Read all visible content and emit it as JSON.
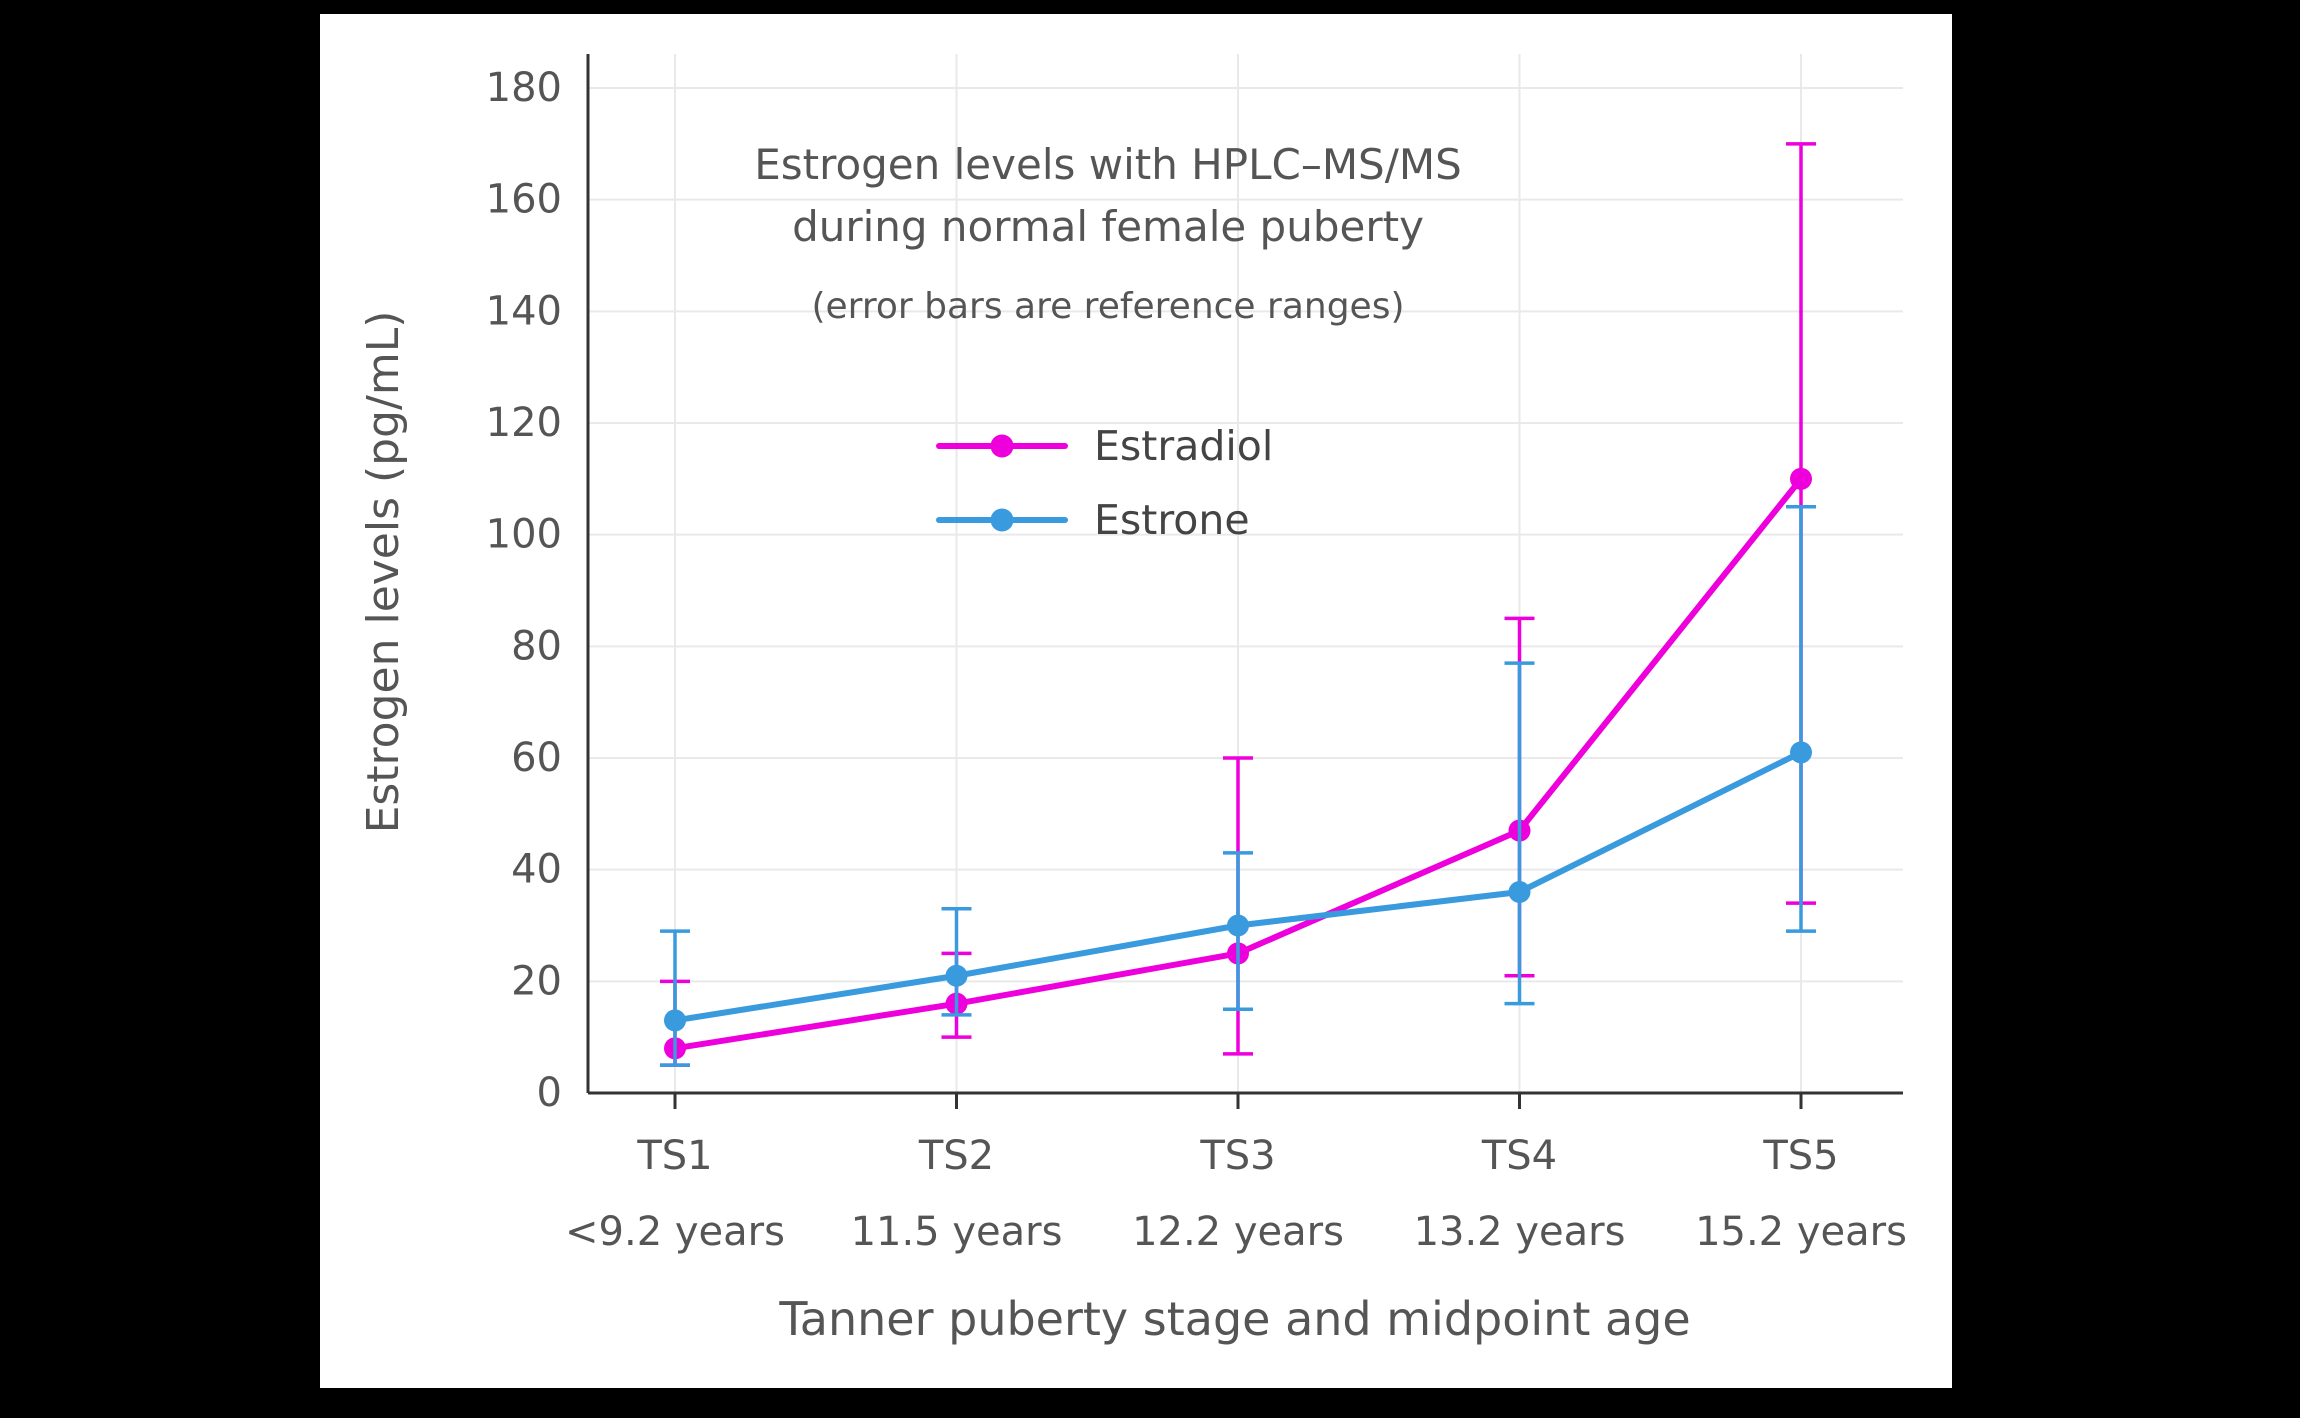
{
  "chart_data": {
    "type": "line",
    "title": "Estrogen levels with HPLC–MS/MS during normal female puberty",
    "title_lines": [
      "Estrogen levels with HPLC–MS/MS",
      "during normal female puberty"
    ],
    "subtitle": "(error bars are reference ranges)",
    "xlabel": "Tanner puberty stage and midpoint age",
    "ylabel": "Estrogen levels (pg/mL)",
    "categories": [
      "TS1",
      "TS2",
      "TS3",
      "TS4",
      "TS5"
    ],
    "category_sublabels": [
      "<9.2 years",
      "11.5 years",
      "12.2 years",
      "13.2 years",
      "15.2 years"
    ],
    "yticks": [
      0,
      20,
      40,
      60,
      80,
      100,
      120,
      140,
      160,
      180
    ],
    "ylim": [
      0,
      186
    ],
    "grid": true,
    "legend_position": "upper-left-inside",
    "colors": {
      "background": "#ffffff",
      "frame": "#000000",
      "gridline": "#e9e9e9",
      "axis": "#333333",
      "text": "#555555"
    },
    "series": [
      {
        "name": "Estradiol",
        "color": "#ee00dd",
        "values": [
          8,
          16,
          25,
          47,
          110
        ],
        "error_low": [
          5,
          10,
          7,
          21,
          34
        ],
        "error_high": [
          20,
          25,
          60,
          85,
          170
        ]
      },
      {
        "name": "Estrone",
        "color": "#3a9ade",
        "values": [
          13,
          21,
          30,
          36,
          61
        ],
        "error_low": [
          5,
          14,
          15,
          16,
          29
        ],
        "error_high": [
          29,
          33,
          43,
          77,
          105
        ]
      }
    ]
  }
}
